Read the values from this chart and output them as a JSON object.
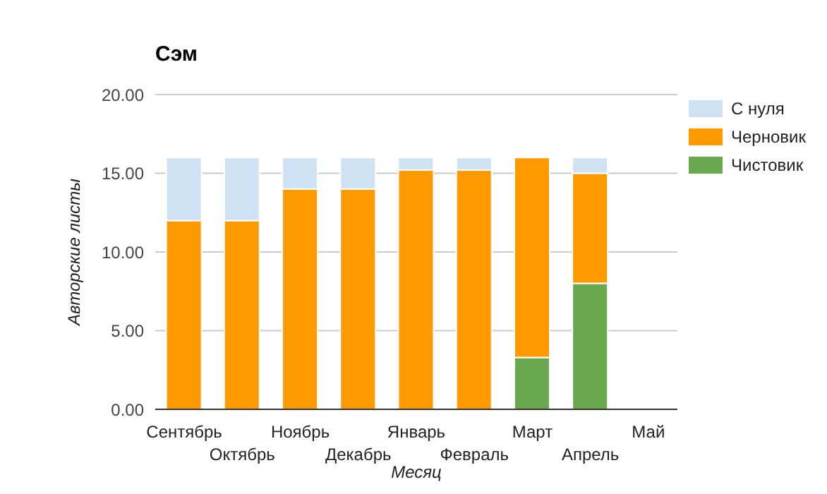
{
  "chart_data": {
    "type": "bar",
    "title": "Сэм",
    "xlabel": "Месяц",
    "ylabel": "Авторские листы",
    "categories": [
      "Сентябрь",
      "Октябрь",
      "Ноябрь",
      "Декабрь",
      "Январь",
      "Февраль",
      "Март",
      "Апрель",
      "Май"
    ],
    "stacked": true,
    "series": [
      {
        "name": "Чистовик",
        "color": "#6aa84f",
        "values": [
          null,
          null,
          null,
          null,
          null,
          null,
          3.3,
          8,
          null
        ]
      },
      {
        "name": "Черновик",
        "color": "#ff9900",
        "values": [
          12,
          12,
          14,
          14,
          15.2,
          15.2,
          12.7,
          7,
          null
        ]
      },
      {
        "name": "С нуля",
        "color": "#cfe2f3",
        "values": [
          4,
          4,
          2,
          2,
          0.8,
          0.8,
          null,
          1,
          null
        ]
      }
    ],
    "ylim": [
      0,
      20
    ],
    "yticks": [
      {
        "value": 0,
        "label": "0.00"
      },
      {
        "value": 5,
        "label": "5.00"
      },
      {
        "value": 10,
        "label": "10.00"
      },
      {
        "value": 15,
        "label": "15.00"
      },
      {
        "value": 20,
        "label": "20.00"
      }
    ],
    "grid": "y",
    "legend": "top right"
  }
}
